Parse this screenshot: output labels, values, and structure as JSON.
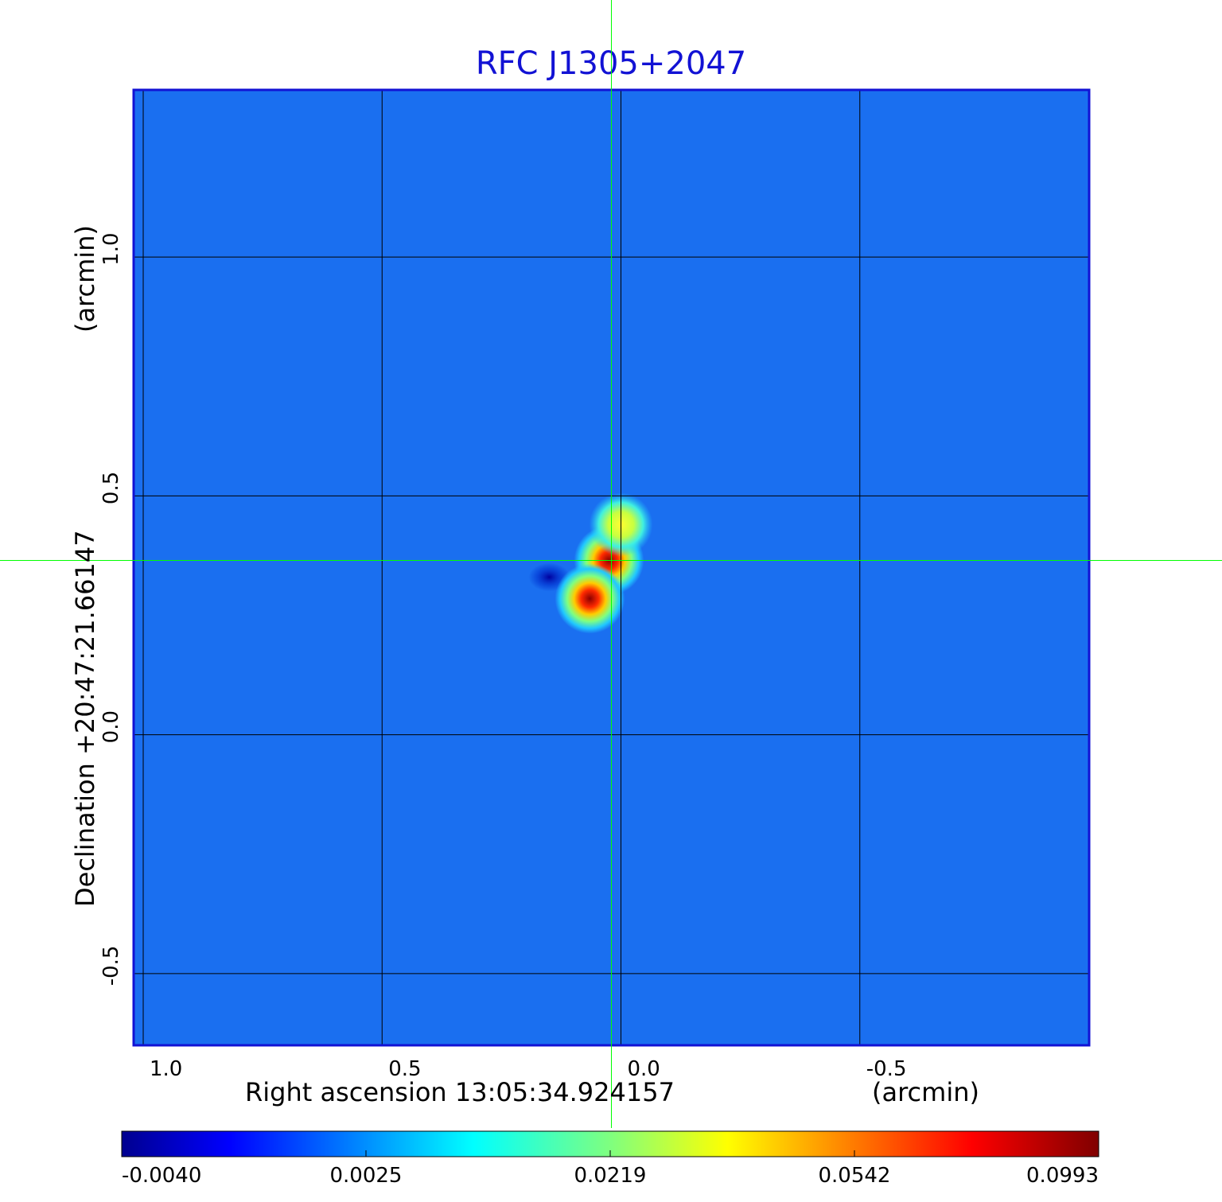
{
  "chart_data": {
    "type": "heatmap",
    "title": "RFC J1305+2047",
    "xlabel": "Right ascension  13:05:34.924157",
    "xunit": "(arcmin)",
    "ylabel": "Declination  +20:47:21.66147",
    "yunit": "(arcmin)",
    "x_ticks": [
      {
        "value": 1.0,
        "label": "1.0"
      },
      {
        "value": 0.5,
        "label": "0.5"
      },
      {
        "value": 0.0,
        "label": "0.0"
      },
      {
        "value": -0.5,
        "label": "-0.5"
      }
    ],
    "y_ticks": [
      {
        "value": 1.0,
        "label": "1.0"
      },
      {
        "value": 0.5,
        "label": "0.5"
      },
      {
        "value": 0.0,
        "label": "0.0"
      },
      {
        "value": -0.5,
        "label": "-0.5"
      }
    ],
    "xlim": [
      1.02,
      -0.98
    ],
    "ylim": [
      -0.65,
      1.35
    ],
    "grid": true,
    "crosshair": {
      "x": 0.02,
      "y": 0.365
    },
    "colorbar": {
      "colormap": "jet",
      "ticks": [
        "-0.0040",
        "0.0025",
        "0.0219",
        "0.0542",
        "0.0993"
      ]
    },
    "sources": [
      {
        "x": 0.025,
        "y": 0.365,
        "value": 0.095
      },
      {
        "x": 0.065,
        "y": 0.285,
        "value": 0.0993
      },
      {
        "x": 0.0,
        "y": 0.44,
        "value": 0.045
      }
    ],
    "min_feature": {
      "x": 0.15,
      "y": 0.33,
      "value": -0.004
    },
    "colors": {
      "title": "#1212d4",
      "frame": "#1212d4",
      "grid": "#000000",
      "crosshair": "#00ff00",
      "background": "#1a6ff0"
    }
  }
}
